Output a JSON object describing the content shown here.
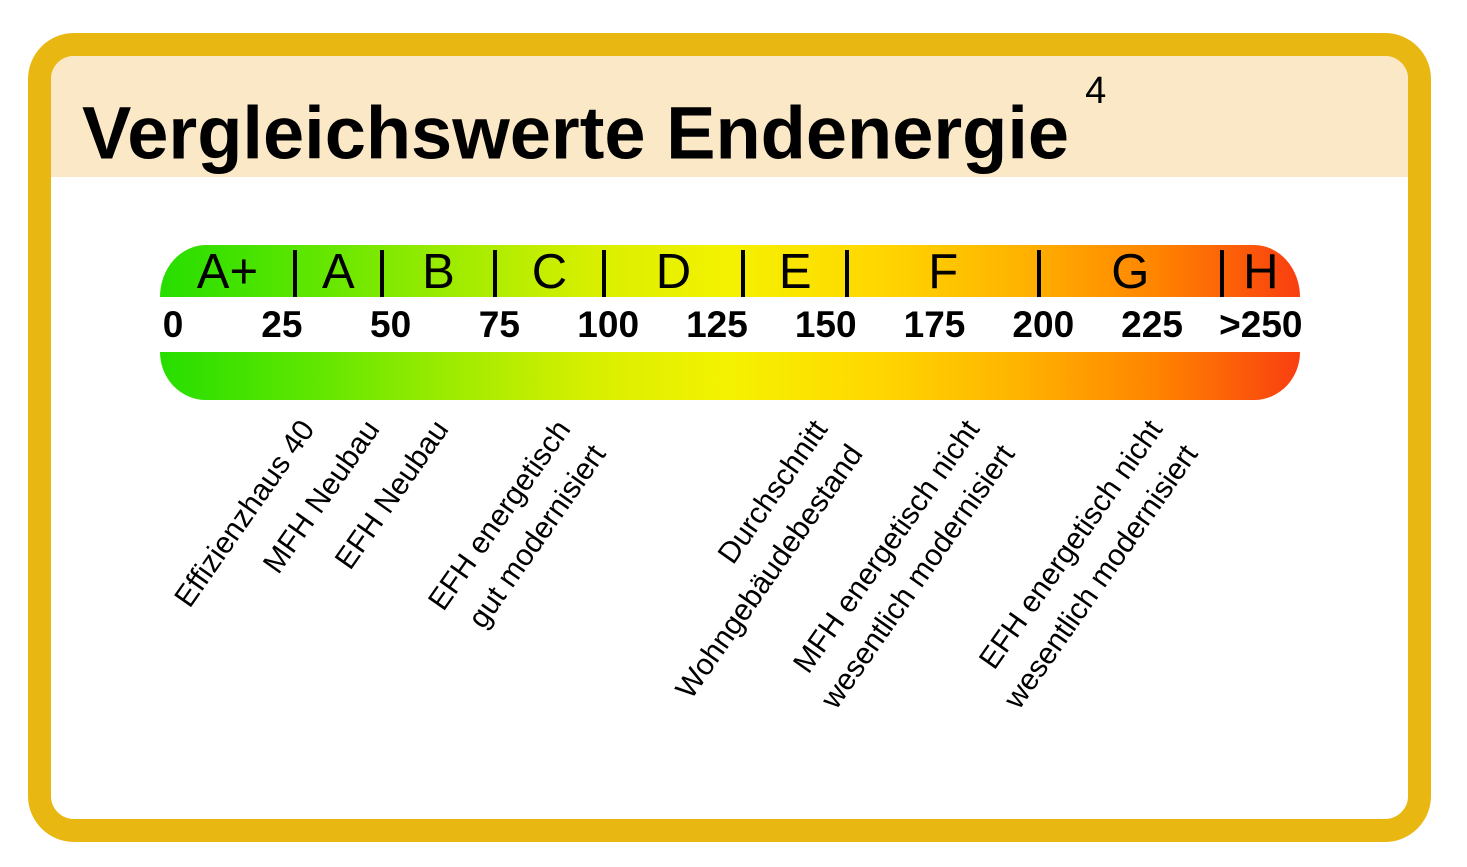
{
  "header": {
    "title": "Vergleichswerte Endenergie",
    "footnote_marker": "4"
  },
  "colors": {
    "frame_gold": "#e9b712",
    "header_cream": "#fae8c6",
    "background": "#ffffff",
    "text": "#000000",
    "gradient": [
      "#26de00",
      "#5be600",
      "#9beb00",
      "#d6ef00",
      "#f5f200",
      "#ffd800",
      "#ffb400",
      "#ff8400",
      "#f93e10"
    ]
  },
  "chart_data": {
    "type": "bar",
    "title": "Vergleichswerte Endenergie",
    "footnote_marker": "4",
    "categories": [
      "A+",
      "A",
      "B",
      "C",
      "D",
      "E",
      "F",
      "G",
      "H"
    ],
    "class_boundaries_est": [
      30,
      50,
      75,
      100,
      130,
      160,
      200,
      250
    ],
    "divider_values_as_drawn": [
      28,
      48,
      74,
      99,
      131,
      155,
      199,
      241
    ],
    "xlim": [
      -3,
      259
    ],
    "grid": false,
    "ticks": [
      {
        "value": 0,
        "label": "0"
      },
      {
        "value": 25,
        "label": "25"
      },
      {
        "value": 50,
        "label": "50"
      },
      {
        "value": 75,
        "label": "75"
      },
      {
        "value": 100,
        "label": "100"
      },
      {
        "value": 125,
        "label": "125"
      },
      {
        "value": 150,
        "label": "150"
      },
      {
        "value": 175,
        "label": "175"
      },
      {
        "value": 200,
        "label": "200"
      },
      {
        "value": 225,
        "label": "225"
      },
      {
        "value": 250,
        "label": ">250"
      }
    ],
    "annotations": [
      {
        "x": 27,
        "lines": [
          "Effizienzhaus 40"
        ]
      },
      {
        "x": 42,
        "lines": [
          "MFH Neubau"
        ]
      },
      {
        "x": 58,
        "lines": [
          "EFH Neubau"
        ]
      },
      {
        "x": 86,
        "lines": [
          "EFH energetisch",
          "gut modernisiert"
        ]
      },
      {
        "x": 145,
        "lines": [
          "Durchschnitt",
          "Wohngebäudebestand"
        ]
      },
      {
        "x": 180,
        "lines": [
          "MFH energetisch nicht",
          "wesentlich modernisiert"
        ]
      },
      {
        "x": 222,
        "lines": [
          "EFH energetisch nicht",
          "wesentlich modernisiert"
        ]
      }
    ]
  }
}
